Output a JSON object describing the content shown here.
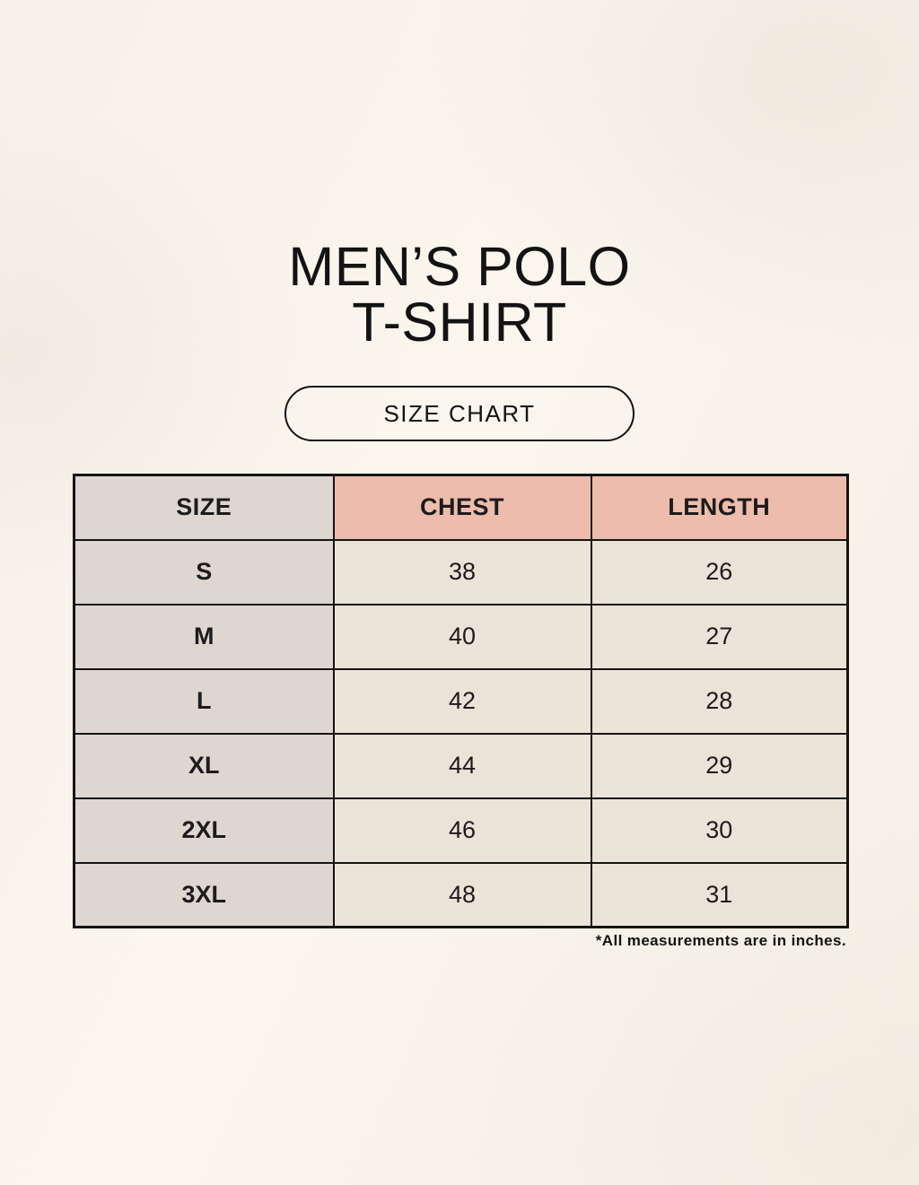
{
  "header": {
    "title_line1": "MEN’S POLO",
    "title_line2": "T-SHIRT",
    "badge_label": "SIZE CHART"
  },
  "chart_data": {
    "type": "table",
    "columns": [
      "SIZE",
      "CHEST",
      "LENGTH"
    ],
    "rows": [
      [
        "S",
        "38",
        "26"
      ],
      [
        "M",
        "40",
        "27"
      ],
      [
        "L",
        "42",
        "28"
      ],
      [
        "XL",
        "44",
        "29"
      ],
      [
        "2XL",
        "46",
        "30"
      ],
      [
        "3XL",
        "48",
        "31"
      ]
    ],
    "title": "MEN’S POLO T-SHIRT SIZE CHART",
    "units_note": "*All measurements are in inches."
  },
  "footnote": "*All measurements are in inches.",
  "colors": {
    "background": "#f8f4ec",
    "header_size_bg": "#ddd6d1",
    "header_measure_bg": "#edbcac",
    "size_col_bg": "#ddd6d1",
    "data_cell_bg": "#eae3d7",
    "border": "#141414",
    "text": "#1c1c1c"
  }
}
